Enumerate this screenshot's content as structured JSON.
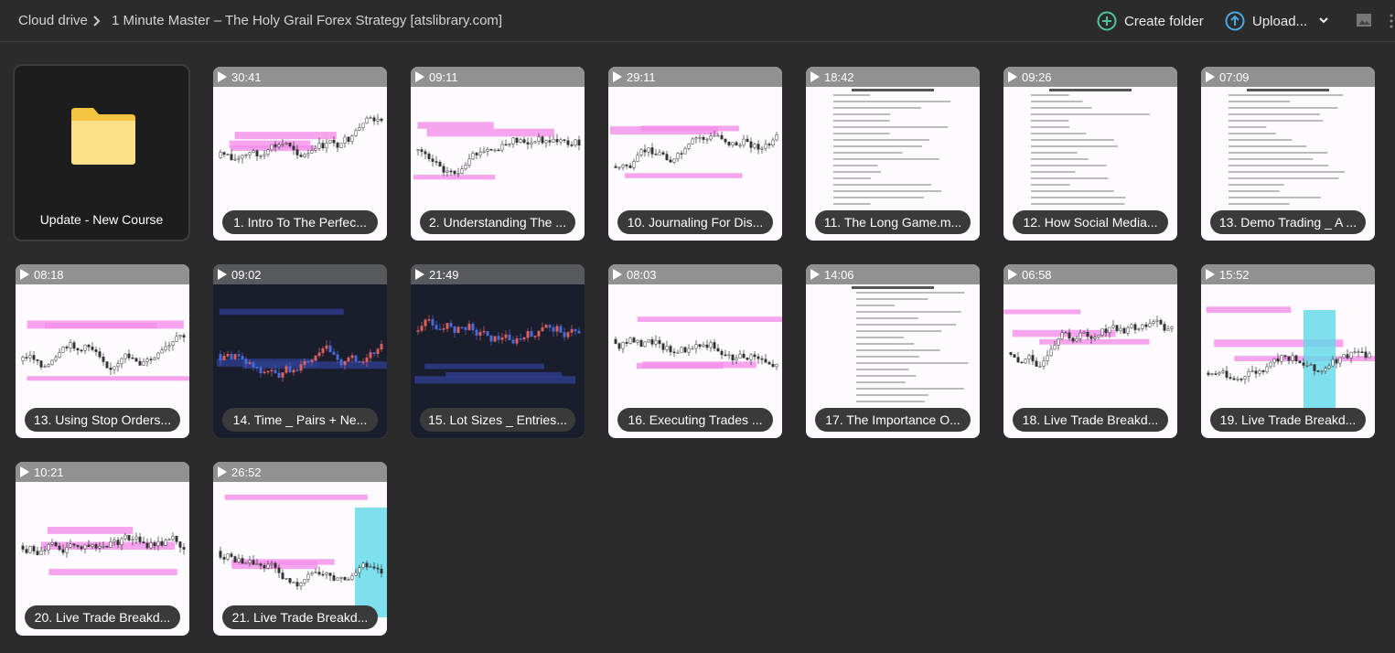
{
  "header": {
    "breadcrumb_root": "Cloud drive",
    "breadcrumb_current": "1 Minute Master – The Holy Grail Forex Strategy [atslibrary.com]",
    "create_folder": "Create folder",
    "upload": "Upload..."
  },
  "folder": {
    "name": "Update - New Course"
  },
  "files": [
    {
      "duration": "30:41",
      "name": "1. Intro To The Perfec..."
    },
    {
      "duration": "09:11",
      "name": "2. Understanding The ..."
    },
    {
      "duration": "29:11",
      "name": "10. Journaling For Dis..."
    },
    {
      "duration": "18:42",
      "name": "11. The Long Game.m..."
    },
    {
      "duration": "09:26",
      "name": "12. How Social Media..."
    },
    {
      "duration": "07:09",
      "name": "13. Demo Trading _ A ..."
    },
    {
      "duration": "08:18",
      "name": "13. Using Stop Orders..."
    },
    {
      "duration": "09:02",
      "name": "14. Time _ Pairs + Ne..."
    },
    {
      "duration": "21:49",
      "name": "15. Lot Sizes _ Entries..."
    },
    {
      "duration": "08:03",
      "name": "16. Executing Trades ..."
    },
    {
      "duration": "14:06",
      "name": "17. The Importance O..."
    },
    {
      "duration": "06:58",
      "name": "18. Live Trade Breakd..."
    },
    {
      "duration": "15:52",
      "name": "19. Live Trade Breakd..."
    },
    {
      "duration": "10:21",
      "name": "20. Live Trade Breakd..."
    },
    {
      "duration": "26:52",
      "name": "21. Live Trade Breakd..."
    }
  ]
}
